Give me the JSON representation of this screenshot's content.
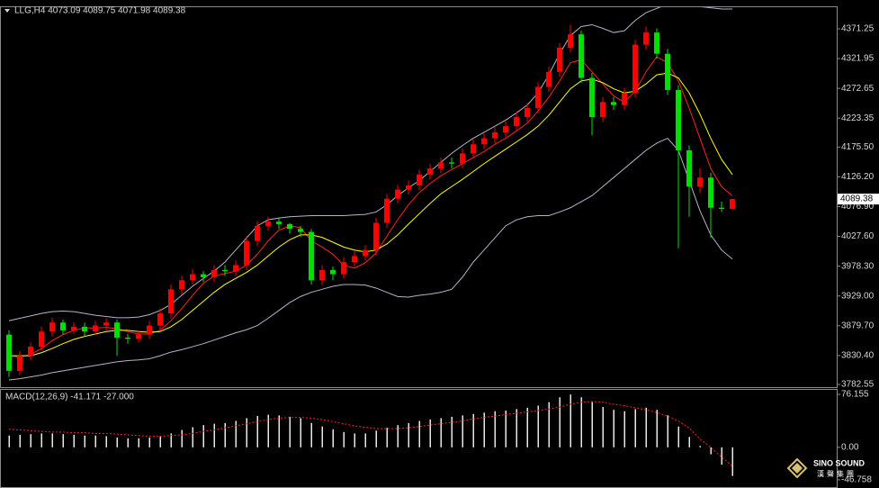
{
  "chart_data": [
    {
      "type": "candlestick",
      "title": "LLG,H4  4073.09 4089.75 4071.98 4089.38",
      "up_color": "#ff0000",
      "down_color": "#00e000",
      "open": [
        3865,
        3805,
        3830,
        3845,
        3870,
        3885,
        3872,
        3878,
        3870,
        3880,
        3885,
        3860,
        3858,
        3865,
        3880,
        3900,
        3940,
        3955,
        3965,
        3960,
        3972,
        3970,
        3980,
        4020,
        4045,
        4052,
        4048,
        4040,
        4035,
        3955,
        3972,
        3965,
        3985,
        3995,
        4005,
        4050,
        4090,
        4105,
        4112,
        4130,
        4140,
        4150,
        4148,
        4165,
        4180,
        4190,
        4200,
        4210,
        4225,
        4240,
        4275,
        4300,
        4340,
        4362,
        4290,
        4225,
        4250,
        4245,
        4265,
        4345,
        4365,
        4330,
        4270,
        4170,
        4110,
        4125,
        4075,
        4073.09
      ],
      "high": [
        3872,
        3838,
        3852,
        3878,
        3893,
        3890,
        3885,
        3885,
        3888,
        3892,
        3890,
        3866,
        3872,
        3888,
        3908,
        3948,
        3962,
        3973,
        3970,
        3980,
        3980,
        3988,
        4028,
        4053,
        4060,
        4058,
        4050,
        4045,
        4040,
        3980,
        3978,
        3993,
        4003,
        4013,
        4058,
        4098,
        4113,
        4120,
        4138,
        4148,
        4158,
        4158,
        4173,
        4188,
        4198,
        4208,
        4218,
        4233,
        4248,
        4283,
        4308,
        4348,
        4378,
        4368,
        4298,
        4258,
        4258,
        4273,
        4353,
        4375,
        4372,
        4338,
        4278,
        4178,
        4140,
        4133,
        4085,
        4089.75
      ],
      "low": [
        3795,
        3798,
        3822,
        3838,
        3862,
        3865,
        3866,
        3862,
        3864,
        3872,
        3830,
        3850,
        3852,
        3858,
        3872,
        3892,
        3932,
        3948,
        3952,
        3952,
        3962,
        3962,
        3972,
        4012,
        4037,
        4040,
        4032,
        4027,
        3948,
        3947,
        3955,
        3958,
        3977,
        3987,
        3997,
        4042,
        4082,
        4097,
        4104,
        4122,
        4132,
        4140,
        4140,
        4157,
        4172,
        4182,
        4192,
        4202,
        4217,
        4232,
        4267,
        4292,
        4332,
        4282,
        4195,
        4217,
        4237,
        4237,
        4257,
        4337,
        4322,
        4262,
        4008,
        4060,
        4100,
        4025,
        4068,
        4071.98
      ],
      "close": [
        3805,
        3830,
        3845,
        3870,
        3885,
        3872,
        3878,
        3870,
        3880,
        3885,
        3860,
        3858,
        3865,
        3880,
        3900,
        3940,
        3955,
        3965,
        3960,
        3972,
        3970,
        3980,
        4020,
        4045,
        4052,
        4048,
        4040,
        4035,
        3955,
        3972,
        3965,
        3985,
        3995,
        4005,
        4050,
        4090,
        4105,
        4112,
        4130,
        4140,
        4150,
        4148,
        4165,
        4180,
        4190,
        4200,
        4210,
        4225,
        4240,
        4275,
        4300,
        4340,
        4362,
        4290,
        4225,
        4250,
        4245,
        4265,
        4345,
        4365,
        4330,
        4270,
        4170,
        4110,
        4125,
        4075,
        4073.09,
        4089.38
      ],
      "series": [
        {
          "color": "#b4b4c8",
          "values": [
            3888,
            3892,
            3896,
            3900,
            3903,
            3904,
            3903,
            3900,
            3897,
            3895,
            3893,
            3893,
            3894,
            3898,
            3905,
            3915,
            3930,
            3945,
            3958,
            3970,
            3985,
            4005,
            4025,
            4045,
            4055,
            4058,
            4060,
            4061,
            4062,
            4062,
            4062,
            4062,
            4063,
            4064,
            4068,
            4080,
            4095,
            4108,
            4120,
            4135,
            4150,
            4165,
            4178,
            4190,
            4200,
            4210,
            4220,
            4232,
            4245,
            4265,
            4295,
            4330,
            4360,
            4375,
            4378,
            4372,
            4365,
            4368,
            4385,
            4398,
            4405,
            4412,
            4412,
            4410,
            4408,
            4406,
            4404,
            4404
          ]
        },
        {
          "color": "#b4b4c8",
          "values": [
            3790,
            3792,
            3795,
            3798,
            3802,
            3805,
            3808,
            3811,
            3814,
            3817,
            3820,
            3822,
            3823,
            3825,
            3830,
            3836,
            3840,
            3845,
            3850,
            3856,
            3862,
            3868,
            3873,
            3880,
            3892,
            3905,
            3918,
            3928,
            3935,
            3940,
            3945,
            3948,
            3948,
            3947,
            3942,
            3935,
            3928,
            3927,
            3930,
            3932,
            3935,
            3940,
            3960,
            3985,
            4005,
            4025,
            4045,
            4055,
            4060,
            4062,
            4062,
            4068,
            4075,
            4085,
            4095,
            4110,
            4125,
            4140,
            4155,
            4170,
            4182,
            4190,
            4170,
            4120,
            4070,
            4030,
            4005,
            3990
          ]
        },
        {
          "color": "#ff2020",
          "values": [
            3830,
            3828,
            3832,
            3842,
            3855,
            3865,
            3872,
            3876,
            3876,
            3877,
            3875,
            3870,
            3866,
            3866,
            3872,
            3888,
            3908,
            3930,
            3950,
            3962,
            3966,
            3970,
            3980,
            3998,
            4020,
            4038,
            4045,
            4042,
            4020,
            4010,
            3998,
            3980,
            3975,
            3984,
            4000,
            4028,
            4055,
            4080,
            4100,
            4115,
            4128,
            4138,
            4148,
            4158,
            4168,
            4180,
            4190,
            4202,
            4215,
            4235,
            4258,
            4285,
            4315,
            4320,
            4300,
            4280,
            4260,
            4250,
            4268,
            4300,
            4325,
            4315,
            4285,
            4240,
            4190,
            4140,
            4110,
            4095
          ]
        },
        {
          "color": "#ffff00",
          "values": [
            3830,
            3830,
            3830,
            3835,
            3842,
            3850,
            3857,
            3862,
            3866,
            3870,
            3872,
            3872,
            3870,
            3869,
            3870,
            3878,
            3890,
            3905,
            3920,
            3935,
            3948,
            3958,
            3968,
            3980,
            3995,
            4010,
            4022,
            4030,
            4030,
            4026,
            4018,
            4010,
            4005,
            4002,
            4005,
            4015,
            4030,
            4048,
            4065,
            4082,
            4098,
            4110,
            4122,
            4135,
            4148,
            4160,
            4172,
            4184,
            4196,
            4210,
            4228,
            4250,
            4272,
            4285,
            4288,
            4282,
            4272,
            4265,
            4268,
            4280,
            4295,
            4298,
            4290,
            4265,
            4230,
            4190,
            4155,
            4130
          ]
        }
      ],
      "ylim": [
        3778,
        4407
      ],
      "yticks": [
        4371.25,
        4321.95,
        4272.65,
        4223.35,
        {
          "value": 4175.5,
          "label": "4175.50"
        },
        {
          "value": 4126.2,
          "label": "4126.20"
        },
        {
          "value": 4076.9,
          "label": "4076.90"
        },
        {
          "value": 4027.6,
          "label": "4027.60"
        },
        {
          "value": 3978.3,
          "label": "3978.30"
        },
        {
          "value": 3929,
          "label": "3929.00"
        },
        {
          "value": 3879.7,
          "label": "3879.70"
        },
        {
          "value": 3830.4,
          "label": "3830.40"
        },
        3782.55
      ]
    },
    {
      "type": "macd",
      "title": "MACD(12,26,9) -41.171 -27.000",
      "color": "#e8e8e8",
      "values": [
        17,
        18,
        19,
        20,
        20,
        19,
        18,
        17,
        17,
        16,
        14,
        13,
        13,
        14,
        16,
        20,
        25,
        29,
        32,
        34,
        35,
        38,
        42,
        45,
        47,
        46,
        44,
        42,
        35,
        30,
        26,
        22,
        20,
        20,
        24,
        28,
        32,
        35,
        38,
        40,
        42,
        44,
        46,
        48,
        50,
        52,
        53,
        55,
        57,
        60,
        65,
        72,
        76,
        72,
        65,
        58,
        54,
        52,
        55,
        57,
        54,
        46,
        30,
        15,
        2,
        -10,
        -25,
        -41.171
      ],
      "signal": {
        "color": "#ff2020",
        "values": [
          26,
          25,
          24,
          23,
          22,
          22,
          21,
          21,
          20,
          20,
          19,
          18,
          17,
          16,
          16,
          17,
          18,
          20,
          23,
          25,
          28,
          31,
          34,
          37,
          40,
          42,
          43,
          43,
          42,
          40,
          37,
          34,
          31,
          29,
          27,
          27,
          27,
          28,
          30,
          32,
          34,
          36,
          38,
          41,
          43,
          45,
          47,
          49,
          51,
          53,
          55,
          58,
          62,
          65,
          66,
          65,
          62,
          60,
          57,
          54,
          50,
          45,
          38,
          28,
          12,
          0,
          -14,
          -27.0
        ]
      },
      "ylim": [
        -57.2,
        82.7
      ],
      "yticks": [
        76.155,
        {
          "value": 0,
          "label": "0.00"
        },
        -46.758
      ]
    }
  ],
  "watermark": {
    "title": "SINO SOUND",
    "subtitle": "漢聲集團"
  }
}
